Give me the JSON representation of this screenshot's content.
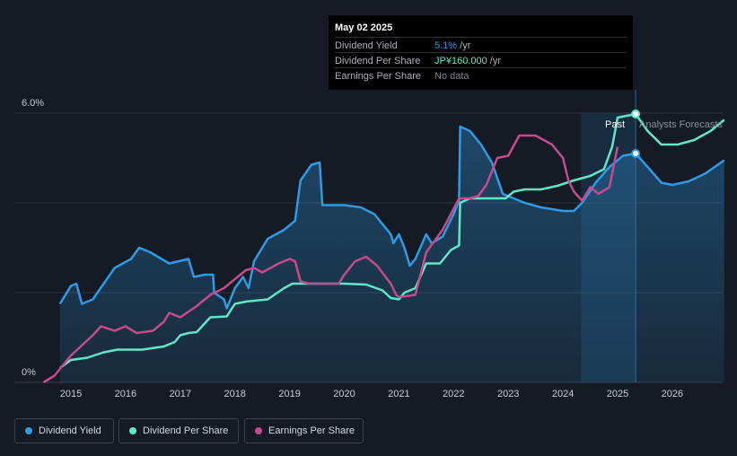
{
  "colors": {
    "background": "#151b24",
    "dividend_yield": "#2f9ae6",
    "dividend_per_share": "#62e6c6",
    "earnings_per_share": "#c54b8c",
    "forecast_band": "#1c3a55",
    "gridline": "#2f3640",
    "axis_text": "#c9cdd3"
  },
  "tooltip": {
    "date": "May 02 2025",
    "rows": [
      {
        "label": "Dividend Yield",
        "value": "5.1%",
        "unit": " /yr",
        "color": "#2f9ae6"
      },
      {
        "label": "Dividend Per Share",
        "value": "JP¥160.000",
        "unit": " /yr",
        "color": "#62e6c6"
      },
      {
        "label": "Earnings Per Share",
        "value": "No data",
        "unit": "",
        "color": "#7c838c"
      }
    ]
  },
  "annotations": {
    "past": "Past",
    "forecast": "Analysts Forecasts"
  },
  "legend": [
    {
      "label": "Dividend Yield",
      "color": "#2f9ae6",
      "icon": "circle-icon"
    },
    {
      "label": "Dividend Per Share",
      "color": "#62e6c6",
      "icon": "circle-icon"
    },
    {
      "label": "Earnings Per Share",
      "color": "#c54b8c",
      "icon": "circle-icon"
    }
  ],
  "chart_data": {
    "type": "line",
    "x_ticks": [
      "2015",
      "2016",
      "2017",
      "2018",
      "2019",
      "2020",
      "2021",
      "2022",
      "2023",
      "2024",
      "2025",
      "2026"
    ],
    "y_ticks": [
      "0%",
      "6.0%"
    ],
    "ylim": [
      0,
      6.0
    ],
    "xlim": [
      2014.4,
      2026.95
    ],
    "grid": true,
    "past_end": 2025.33,
    "forecast_band_start": 2024.33,
    "series": [
      {
        "name": "Dividend Yield",
        "color": "#2f9ae6",
        "filled": true,
        "points": [
          [
            2014.8,
            1.75
          ],
          [
            2015.0,
            2.15
          ],
          [
            2015.1,
            2.2
          ],
          [
            2015.2,
            1.75
          ],
          [
            2015.4,
            1.85
          ],
          [
            2015.8,
            2.55
          ],
          [
            2016.1,
            2.75
          ],
          [
            2016.25,
            3.0
          ],
          [
            2016.45,
            2.9
          ],
          [
            2016.8,
            2.65
          ],
          [
            2017.15,
            2.75
          ],
          [
            2017.25,
            2.35
          ],
          [
            2017.45,
            2.4
          ],
          [
            2017.6,
            2.4
          ],
          [
            2017.62,
            2.0
          ],
          [
            2017.8,
            1.85
          ],
          [
            2017.85,
            1.65
          ],
          [
            2018.0,
            2.1
          ],
          [
            2018.15,
            2.35
          ],
          [
            2018.25,
            2.1
          ],
          [
            2018.35,
            2.7
          ],
          [
            2018.6,
            3.2
          ],
          [
            2018.9,
            3.4
          ],
          [
            2019.1,
            3.6
          ],
          [
            2019.2,
            4.5
          ],
          [
            2019.4,
            4.85
          ],
          [
            2019.55,
            4.9
          ],
          [
            2019.6,
            3.95
          ],
          [
            2020.0,
            3.95
          ],
          [
            2020.3,
            3.9
          ],
          [
            2020.55,
            3.75
          ],
          [
            2020.85,
            3.3
          ],
          [
            2020.9,
            3.1
          ],
          [
            2021.0,
            3.3
          ],
          [
            2021.1,
            3.0
          ],
          [
            2021.2,
            2.6
          ],
          [
            2021.3,
            2.75
          ],
          [
            2021.5,
            3.3
          ],
          [
            2021.6,
            3.1
          ],
          [
            2021.8,
            3.25
          ],
          [
            2022.0,
            3.75
          ],
          [
            2022.1,
            4.05
          ],
          [
            2022.12,
            5.7
          ],
          [
            2022.3,
            5.6
          ],
          [
            2022.5,
            5.3
          ],
          [
            2022.7,
            4.9
          ],
          [
            2022.9,
            4.2
          ],
          [
            2023.1,
            4.1
          ],
          [
            2023.3,
            4.0
          ],
          [
            2023.6,
            3.9
          ],
          [
            2024.0,
            3.82
          ],
          [
            2024.2,
            3.82
          ],
          [
            2024.35,
            4.0
          ],
          [
            2024.6,
            4.45
          ],
          [
            2024.85,
            4.8
          ],
          [
            2025.1,
            5.05
          ],
          [
            2025.33,
            5.1
          ],
          [
            2025.55,
            4.8
          ],
          [
            2025.8,
            4.45
          ],
          [
            2026.0,
            4.4
          ],
          [
            2026.3,
            4.48
          ],
          [
            2026.6,
            4.65
          ],
          [
            2026.95,
            4.95
          ]
        ]
      },
      {
        "name": "Dividend Per Share",
        "color": "#62e6c6",
        "filled": false,
        "points": [
          [
            2014.8,
            0.32
          ],
          [
            2015.0,
            0.5
          ],
          [
            2015.3,
            0.55
          ],
          [
            2015.6,
            0.67
          ],
          [
            2015.85,
            0.73
          ],
          [
            2016.3,
            0.73
          ],
          [
            2016.7,
            0.8
          ],
          [
            2016.9,
            0.9
          ],
          [
            2017.0,
            1.05
          ],
          [
            2017.15,
            1.1
          ],
          [
            2017.3,
            1.12
          ],
          [
            2017.55,
            1.45
          ],
          [
            2017.85,
            1.47
          ],
          [
            2018.0,
            1.75
          ],
          [
            2018.2,
            1.8
          ],
          [
            2018.6,
            1.85
          ],
          [
            2018.9,
            2.1
          ],
          [
            2019.05,
            2.2
          ],
          [
            2019.8,
            2.2
          ],
          [
            2020.0,
            2.2
          ],
          [
            2020.4,
            2.18
          ],
          [
            2020.7,
            2.05
          ],
          [
            2020.85,
            1.88
          ],
          [
            2021.0,
            1.85
          ],
          [
            2021.1,
            2.0
          ],
          [
            2021.3,
            2.1
          ],
          [
            2021.5,
            2.65
          ],
          [
            2021.75,
            2.65
          ],
          [
            2021.95,
            2.95
          ],
          [
            2022.1,
            3.05
          ],
          [
            2022.12,
            4.0
          ],
          [
            2022.3,
            4.1
          ],
          [
            2022.6,
            4.1
          ],
          [
            2022.95,
            4.1
          ],
          [
            2023.1,
            4.25
          ],
          [
            2023.3,
            4.3
          ],
          [
            2023.6,
            4.3
          ],
          [
            2023.9,
            4.38
          ],
          [
            2024.2,
            4.5
          ],
          [
            2024.5,
            4.6
          ],
          [
            2024.75,
            4.75
          ],
          [
            2024.9,
            5.25
          ],
          [
            2025.0,
            5.9
          ],
          [
            2025.33,
            5.98
          ],
          [
            2025.55,
            5.6
          ],
          [
            2025.8,
            5.3
          ],
          [
            2026.1,
            5.3
          ],
          [
            2026.4,
            5.4
          ],
          [
            2026.7,
            5.6
          ],
          [
            2026.95,
            5.85
          ]
        ]
      },
      {
        "name": "Earnings Per Share",
        "color": "#c54b8c",
        "filled": false,
        "points": [
          [
            2014.5,
            0.0
          ],
          [
            2014.7,
            0.15
          ],
          [
            2015.0,
            0.6
          ],
          [
            2015.4,
            1.05
          ],
          [
            2015.55,
            1.25
          ],
          [
            2015.8,
            1.15
          ],
          [
            2016.0,
            1.25
          ],
          [
            2016.2,
            1.1
          ],
          [
            2016.5,
            1.15
          ],
          [
            2016.7,
            1.35
          ],
          [
            2016.8,
            1.55
          ],
          [
            2017.0,
            1.45
          ],
          [
            2017.3,
            1.7
          ],
          [
            2017.55,
            1.95
          ],
          [
            2017.8,
            2.1
          ],
          [
            2018.05,
            2.35
          ],
          [
            2018.2,
            2.5
          ],
          [
            2018.35,
            2.55
          ],
          [
            2018.5,
            2.45
          ],
          [
            2018.8,
            2.65
          ],
          [
            2019.0,
            2.75
          ],
          [
            2019.1,
            2.7
          ],
          [
            2019.2,
            2.25
          ],
          [
            2019.35,
            2.2
          ],
          [
            2019.8,
            2.2
          ],
          [
            2019.9,
            2.2
          ],
          [
            2020.0,
            2.4
          ],
          [
            2020.2,
            2.7
          ],
          [
            2020.4,
            2.8
          ],
          [
            2020.6,
            2.6
          ],
          [
            2020.85,
            2.2
          ],
          [
            2020.95,
            1.95
          ],
          [
            2021.0,
            1.9
          ],
          [
            2021.3,
            1.95
          ],
          [
            2021.5,
            2.9
          ],
          [
            2021.8,
            3.4
          ],
          [
            2022.1,
            4.1
          ],
          [
            2022.3,
            4.1
          ],
          [
            2022.45,
            4.15
          ],
          [
            2022.6,
            4.4
          ],
          [
            2022.8,
            5.0
          ],
          [
            2023.0,
            5.05
          ],
          [
            2023.2,
            5.5
          ],
          [
            2023.5,
            5.5
          ],
          [
            2023.8,
            5.3
          ],
          [
            2024.0,
            5.0
          ],
          [
            2024.1,
            4.5
          ],
          [
            2024.2,
            4.25
          ],
          [
            2024.35,
            4.05
          ],
          [
            2024.5,
            4.35
          ],
          [
            2024.65,
            4.2
          ],
          [
            2024.85,
            4.35
          ],
          [
            2025.0,
            5.25
          ]
        ]
      }
    ]
  }
}
